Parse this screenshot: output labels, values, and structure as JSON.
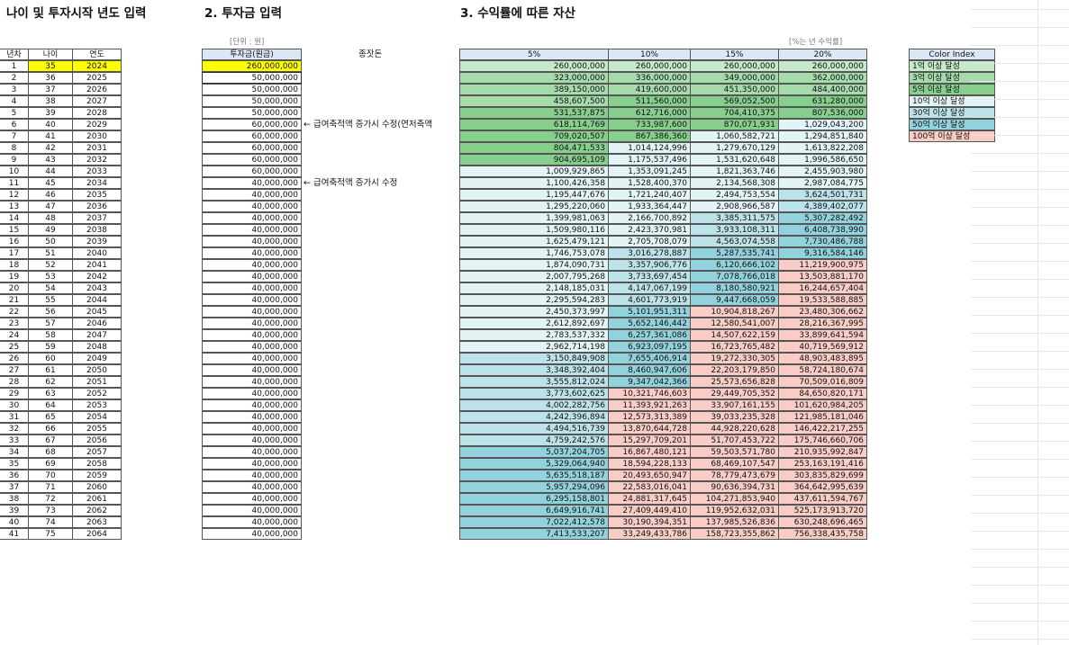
{
  "titles": {
    "section1": "나이 및 투자시작 년도 입력",
    "section2": "2. 투자금 입력",
    "section3": "3. 수익률에 따른 자산"
  },
  "units": {
    "won": "[단위 : 원]",
    "rate_note": "[%는 년 수익률]"
  },
  "headers": {
    "year_no": "년차",
    "age": "나이",
    "year": "연도",
    "principal": "투자금(원금)",
    "extra": "종잣돈",
    "rates": [
      "5%",
      "10%",
      "15%",
      "20%"
    ]
  },
  "notes": [
    {
      "row": 6,
      "text": "← 급여축적액 증가시 수정(연저축액"
    },
    {
      "row": 11,
      "text": "← 급여축적액 증가시 수정"
    }
  ],
  "color_index": {
    "title": "Color Index",
    "items": [
      {
        "label": "1억 이상 달성",
        "color": "#c6e9c9"
      },
      {
        "label": "3억 이상 달성",
        "color": "#a6dcab"
      },
      {
        "label": "5억 이상 달성",
        "color": "#86cf8d"
      },
      {
        "label": "10억 이상 달성",
        "color": "#e3f4f7"
      },
      {
        "label": "30억 이상 달성",
        "color": "#bde3ea"
      },
      {
        "label": "50억 이상 달성",
        "color": "#92d2dd"
      },
      {
        "label": "100억 이상 달성",
        "color": "#f9cdc5"
      }
    ]
  },
  "colors": {
    "highlight": "#ffff00",
    "header_bg": "#dbe9f7",
    "tier_0": "#ffffff",
    "tier_1": "#c6e9c9",
    "tier_2": "#a6dcab",
    "tier_3": "#86cf8d",
    "tier_4": "#e3f4f7",
    "tier_5": "#bde3ea",
    "tier_6": "#92d2dd",
    "tier_7": "#f9cdc5"
  },
  "rows": [
    {
      "n": "1",
      "age": "35",
      "year": "2024",
      "principal": "260,000,000",
      "v": [
        "260,000,000",
        "260,000,000",
        "260,000,000",
        "260,000,000"
      ]
    },
    {
      "n": "2",
      "age": "36",
      "year": "2025",
      "principal": "50,000,000",
      "v": [
        "323,000,000",
        "336,000,000",
        "349,000,000",
        "362,000,000"
      ]
    },
    {
      "n": "3",
      "age": "37",
      "year": "2026",
      "principal": "50,000,000",
      "v": [
        "389,150,000",
        "419,600,000",
        "451,350,000",
        "484,400,000"
      ]
    },
    {
      "n": "4",
      "age": "38",
      "year": "2027",
      "principal": "50,000,000",
      "v": [
        "458,607,500",
        "511,560,000",
        "569,052,500",
        "631,280,000"
      ]
    },
    {
      "n": "5",
      "age": "39",
      "year": "2028",
      "principal": "50,000,000",
      "v": [
        "531,537,875",
        "612,716,000",
        "704,410,375",
        "807,536,000"
      ]
    },
    {
      "n": "6",
      "age": "40",
      "year": "2029",
      "principal": "60,000,000",
      "v": [
        "618,114,769",
        "733,987,600",
        "870,071,931",
        "1,029,043,200"
      ]
    },
    {
      "n": "7",
      "age": "41",
      "year": "2030",
      "principal": "60,000,000",
      "v": [
        "709,020,507",
        "867,386,360",
        "1,060,582,721",
        "1,294,851,840"
      ]
    },
    {
      "n": "8",
      "age": "42",
      "year": "2031",
      "principal": "60,000,000",
      "v": [
        "804,471,533",
        "1,014,124,996",
        "1,279,670,129",
        "1,613,822,208"
      ]
    },
    {
      "n": "9",
      "age": "43",
      "year": "2032",
      "principal": "60,000,000",
      "v": [
        "904,695,109",
        "1,175,537,496",
        "1,531,620,648",
        "1,996,586,650"
      ]
    },
    {
      "n": "10",
      "age": "44",
      "year": "2033",
      "principal": "60,000,000",
      "v": [
        "1,009,929,865",
        "1,353,091,245",
        "1,821,363,746",
        "2,455,903,980"
      ]
    },
    {
      "n": "11",
      "age": "45",
      "year": "2034",
      "principal": "40,000,000",
      "v": [
        "1,100,426,358",
        "1,528,400,370",
        "2,134,568,308",
        "2,987,084,775"
      ]
    },
    {
      "n": "12",
      "age": "46",
      "year": "2035",
      "principal": "40,000,000",
      "v": [
        "1,195,447,676",
        "1,721,240,407",
        "2,494,753,554",
        "3,624,501,731"
      ]
    },
    {
      "n": "13",
      "age": "47",
      "year": "2036",
      "principal": "40,000,000",
      "v": [
        "1,295,220,060",
        "1,933,364,447",
        "2,908,966,587",
        "4,389,402,077"
      ]
    },
    {
      "n": "14",
      "age": "48",
      "year": "2037",
      "principal": "40,000,000",
      "v": [
        "1,399,981,063",
        "2,166,700,892",
        "3,385,311,575",
        "5,307,282,492"
      ]
    },
    {
      "n": "15",
      "age": "49",
      "year": "2038",
      "principal": "40,000,000",
      "v": [
        "1,509,980,116",
        "2,423,370,981",
        "3,933,108,311",
        "6,408,738,990"
      ]
    },
    {
      "n": "16",
      "age": "50",
      "year": "2039",
      "principal": "40,000,000",
      "v": [
        "1,625,479,121",
        "2,705,708,079",
        "4,563,074,558",
        "7,730,486,788"
      ]
    },
    {
      "n": "17",
      "age": "51",
      "year": "2040",
      "principal": "40,000,000",
      "v": [
        "1,746,753,078",
        "3,016,278,887",
        "5,287,535,741",
        "9,316,584,146"
      ]
    },
    {
      "n": "18",
      "age": "52",
      "year": "2041",
      "principal": "40,000,000",
      "v": [
        "1,874,090,731",
        "3,357,906,776",
        "6,120,666,102",
        "11,219,900,975"
      ]
    },
    {
      "n": "19",
      "age": "53",
      "year": "2042",
      "principal": "40,000,000",
      "v": [
        "2,007,795,268",
        "3,733,697,454",
        "7,078,766,018",
        "13,503,881,170"
      ]
    },
    {
      "n": "20",
      "age": "54",
      "year": "2043",
      "principal": "40,000,000",
      "v": [
        "2,148,185,031",
        "4,147,067,199",
        "8,180,580,921",
        "16,244,657,404"
      ]
    },
    {
      "n": "21",
      "age": "55",
      "year": "2044",
      "principal": "40,000,000",
      "v": [
        "2,295,594,283",
        "4,601,773,919",
        "9,447,668,059",
        "19,533,588,885"
      ]
    },
    {
      "n": "22",
      "age": "56",
      "year": "2045",
      "principal": "40,000,000",
      "v": [
        "2,450,373,997",
        "5,101,951,311",
        "10,904,818,267",
        "23,480,306,662"
      ]
    },
    {
      "n": "23",
      "age": "57",
      "year": "2046",
      "principal": "40,000,000",
      "v": [
        "2,612,892,697",
        "5,652,146,442",
        "12,580,541,007",
        "28,216,367,995"
      ]
    },
    {
      "n": "24",
      "age": "58",
      "year": "2047",
      "principal": "40,000,000",
      "v": [
        "2,783,537,332",
        "6,257,361,086",
        "14,507,622,159",
        "33,899,641,594"
      ]
    },
    {
      "n": "25",
      "age": "59",
      "year": "2048",
      "principal": "40,000,000",
      "v": [
        "2,962,714,198",
        "6,923,097,195",
        "16,723,765,482",
        "40,719,569,912"
      ]
    },
    {
      "n": "26",
      "age": "60",
      "year": "2049",
      "principal": "40,000,000",
      "v": [
        "3,150,849,908",
        "7,655,406,914",
        "19,272,330,305",
        "48,903,483,895"
      ]
    },
    {
      "n": "27",
      "age": "61",
      "year": "2050",
      "principal": "40,000,000",
      "v": [
        "3,348,392,404",
        "8,460,947,606",
        "22,203,179,850",
        "58,724,180,674"
      ]
    },
    {
      "n": "28",
      "age": "62",
      "year": "2051",
      "principal": "40,000,000",
      "v": [
        "3,555,812,024",
        "9,347,042,366",
        "25,573,656,828",
        "70,509,016,809"
      ]
    },
    {
      "n": "29",
      "age": "63",
      "year": "2052",
      "principal": "40,000,000",
      "v": [
        "3,773,602,625",
        "10,321,746,603",
        "29,449,705,352",
        "84,650,820,171"
      ]
    },
    {
      "n": "30",
      "age": "64",
      "year": "2053",
      "principal": "40,000,000",
      "v": [
        "4,002,282,756",
        "11,393,921,263",
        "33,907,161,155",
        "101,620,984,205"
      ]
    },
    {
      "n": "31",
      "age": "65",
      "year": "2054",
      "principal": "40,000,000",
      "v": [
        "4,242,396,894",
        "12,573,313,389",
        "39,033,235,328",
        "121,985,181,046"
      ]
    },
    {
      "n": "32",
      "age": "66",
      "year": "2055",
      "principal": "40,000,000",
      "v": [
        "4,494,516,739",
        "13,870,644,728",
        "44,928,220,628",
        "146,422,217,255"
      ]
    },
    {
      "n": "33",
      "age": "67",
      "year": "2056",
      "principal": "40,000,000",
      "v": [
        "4,759,242,576",
        "15,297,709,201",
        "51,707,453,722",
        "175,746,660,706"
      ]
    },
    {
      "n": "34",
      "age": "68",
      "year": "2057",
      "principal": "40,000,000",
      "v": [
        "5,037,204,705",
        "16,867,480,121",
        "59,503,571,780",
        "210,935,992,847"
      ]
    },
    {
      "n": "35",
      "age": "69",
      "year": "2058",
      "principal": "40,000,000",
      "v": [
        "5,329,064,940",
        "18,594,228,133",
        "68,469,107,547",
        "253,163,191,416"
      ]
    },
    {
      "n": "36",
      "age": "70",
      "year": "2059",
      "principal": "40,000,000",
      "v": [
        "5,635,518,187",
        "20,493,650,947",
        "78,779,473,679",
        "303,835,829,699"
      ]
    },
    {
      "n": "37",
      "age": "71",
      "year": "2060",
      "principal": "40,000,000",
      "v": [
        "5,957,294,096",
        "22,583,016,041",
        "90,636,394,731",
        "364,642,995,639"
      ]
    },
    {
      "n": "38",
      "age": "72",
      "year": "2061",
      "principal": "40,000,000",
      "v": [
        "6,295,158,801",
        "24,881,317,645",
        "104,271,853,940",
        "437,611,594,767"
      ]
    },
    {
      "n": "39",
      "age": "73",
      "year": "2062",
      "principal": "40,000,000",
      "v": [
        "6,649,916,741",
        "27,409,449,410",
        "119,952,632,031",
        "525,173,913,720"
      ]
    },
    {
      "n": "40",
      "age": "74",
      "year": "2063",
      "principal": "40,000,000",
      "v": [
        "7,022,412,578",
        "30,190,394,351",
        "137,985,526,836",
        "630,248,696,465"
      ]
    },
    {
      "n": "41",
      "age": "75",
      "year": "2064",
      "principal": "40,000,000",
      "v": [
        "7,413,533,207",
        "33,249,433,786",
        "158,723,355,862",
        "756,338,435,758"
      ]
    }
  ]
}
